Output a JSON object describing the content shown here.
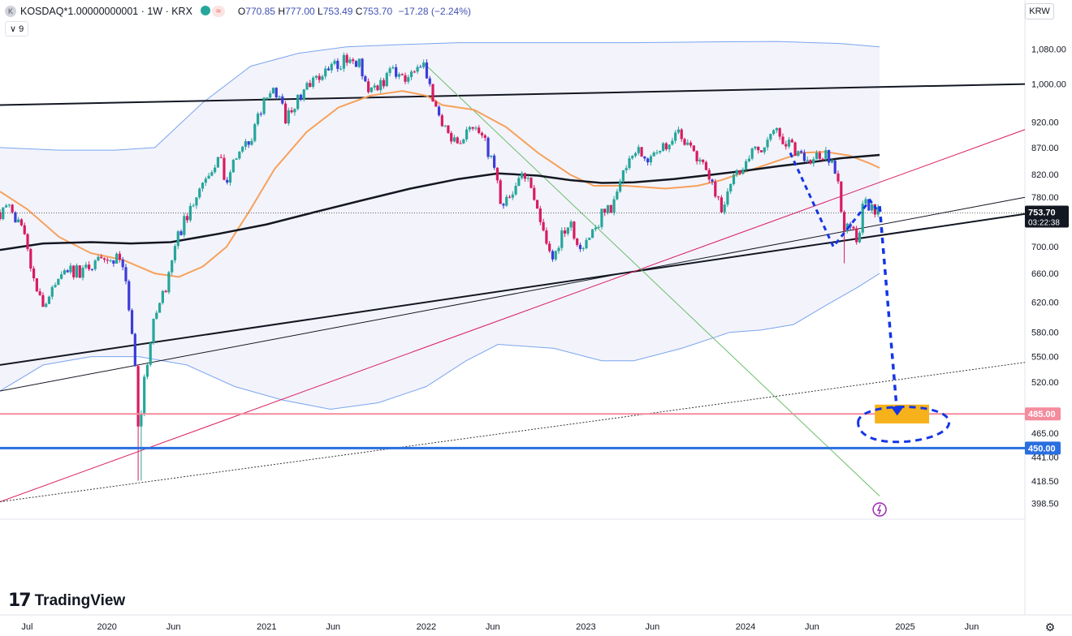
{
  "header": {
    "symbol": "KOSDAQ*1.00000000001 · 1W · KRX",
    "symbol_icon": "K",
    "open_label": "O",
    "open": "770.85",
    "high_label": "H",
    "high": "777.00",
    "low_label": "L",
    "low": "753.49",
    "close_label": "C",
    "close": "753.70",
    "change": "−17.28 (−2.24%)",
    "indicator_count": "9",
    "indicator_chevron": "∨",
    "wave_glyph": "≈"
  },
  "currency": "KRW",
  "branding": {
    "name": "TradingView",
    "mark": "17"
  },
  "settings_glyph": "⚙",
  "colors": {
    "up": "#26a69a",
    "down": "#3b3cd8",
    "down_red": "#d81b60",
    "bb_line": "#7aa5ef",
    "bb_fill": "#f3f3fb",
    "ma_orange": "#f6a15a",
    "ma_black": "#131722",
    "support_red": "#f48c9e",
    "support_blue": "#2a6fe0",
    "target_orange": "#f7b21b",
    "projection_blue": "#1336e6",
    "trend_green": "#6abf69",
    "trend_crimson": "#d81b60"
  },
  "chart_data": {
    "type": "candlestick",
    "title": "KOSDAQ*1.00000000001 · 1W · KRX",
    "y_scale": "log",
    "ylim": [
      385,
      1140
    ],
    "y_ticks": [
      1080,
      1000,
      920,
      870,
      820,
      780,
      700,
      660,
      620,
      580,
      550,
      520,
      465,
      441,
      418.5,
      398.5
    ],
    "y_tick_labels": [
      "1,080.00",
      "1,000.00",
      "920.00",
      "870.00",
      "820.00",
      "780.00",
      "700.00",
      "660.00",
      "620.00",
      "580.00",
      "550.00",
      "520.00",
      "465.00",
      "441.00",
      "418.50",
      "398.50"
    ],
    "x_range": [
      2019.33,
      2025.75
    ],
    "x_ticks": [
      {
        "label": "Jul",
        "t": 2019.5
      },
      {
        "label": "2020",
        "t": 2020.0
      },
      {
        "label": "Jun",
        "t": 2020.4167
      },
      {
        "label": "2021",
        "t": 2021.0
      },
      {
        "label": "Jun",
        "t": 2021.4167
      },
      {
        "label": "2022",
        "t": 2022.0
      },
      {
        "label": "Jun",
        "t": 2022.4167
      },
      {
        "label": "2023",
        "t": 2023.0
      },
      {
        "label": "Jun",
        "t": 2023.4167
      },
      {
        "label": "2024",
        "t": 2024.0
      },
      {
        "label": "Jun",
        "t": 2024.4167
      },
      {
        "label": "2025",
        "t": 2025.0
      },
      {
        "label": "Jun",
        "t": 2025.4167
      }
    ],
    "price_anchors": [
      [
        2019.33,
        755
      ],
      [
        2019.4,
        765
      ],
      [
        2019.48,
        715
      ],
      [
        2019.55,
        640
      ],
      [
        2019.6,
        610
      ],
      [
        2019.66,
        640
      ],
      [
        2019.75,
        665
      ],
      [
        2019.85,
        660
      ],
      [
        2019.92,
        680
      ],
      [
        2020.0,
        670
      ],
      [
        2020.08,
        690
      ],
      [
        2020.12,
        640
      ],
      [
        2020.17,
        560
      ],
      [
        2020.2,
        460
      ],
      [
        2020.23,
        520
      ],
      [
        2020.3,
        600
      ],
      [
        2020.38,
        650
      ],
      [
        2020.45,
        720
      ],
      [
        2020.55,
        780
      ],
      [
        2020.62,
        820
      ],
      [
        2020.7,
        850
      ],
      [
        2020.75,
        810
      ],
      [
        2020.82,
        860
      ],
      [
        2020.9,
        880
      ],
      [
        2020.98,
        960
      ],
      [
        2021.05,
        990
      ],
      [
        2021.12,
        930
      ],
      [
        2021.2,
        970
      ],
      [
        2021.28,
        1010
      ],
      [
        2021.35,
        1020
      ],
      [
        2021.42,
        1040
      ],
      [
        2021.5,
        1055
      ],
      [
        2021.58,
        1050
      ],
      [
        2021.62,
        990
      ],
      [
        2021.7,
        1000
      ],
      [
        2021.78,
        1025
      ],
      [
        2021.85,
        1010
      ],
      [
        2021.92,
        1020
      ],
      [
        2021.99,
        1040
      ],
      [
        2022.05,
        960
      ],
      [
        2022.12,
        900
      ],
      [
        2022.2,
        880
      ],
      [
        2022.28,
        920
      ],
      [
        2022.35,
        890
      ],
      [
        2022.42,
        840
      ],
      [
        2022.48,
        760
      ],
      [
        2022.55,
        790
      ],
      [
        2022.6,
        820
      ],
      [
        2022.66,
        800
      ],
      [
        2022.72,
        730
      ],
      [
        2022.78,
        680
      ],
      [
        2022.85,
        720
      ],
      [
        2022.9,
        740
      ],
      [
        2022.97,
        690
      ],
      [
        2023.05,
        720
      ],
      [
        2023.1,
        750
      ],
      [
        2023.18,
        770
      ],
      [
        2023.25,
        840
      ],
      [
        2023.32,
        870
      ],
      [
        2023.4,
        840
      ],
      [
        2023.48,
        870
      ],
      [
        2023.55,
        900
      ],
      [
        2023.6,
        890
      ],
      [
        2023.65,
        880
      ],
      [
        2023.72,
        840
      ],
      [
        2023.8,
        800
      ],
      [
        2023.85,
        760
      ],
      [
        2023.9,
        800
      ],
      [
        2023.98,
        830
      ],
      [
        2024.05,
        860
      ],
      [
        2024.12,
        880
      ],
      [
        2024.2,
        900
      ],
      [
        2024.28,
        870
      ],
      [
        2024.35,
        860
      ],
      [
        2024.42,
        850
      ],
      [
        2024.5,
        855
      ],
      [
        2024.55,
        840
      ],
      [
        2024.58,
        800
      ],
      [
        2024.62,
        720
      ],
      [
        2024.66,
        740
      ],
      [
        2024.7,
        700
      ],
      [
        2024.74,
        770
      ],
      [
        2024.79,
        765
      ],
      [
        2024.84,
        754
      ]
    ],
    "bb_upper": [
      [
        2019.33,
        870
      ],
      [
        2019.7,
        865
      ],
      [
        2020.05,
        865
      ],
      [
        2020.3,
        870
      ],
      [
        2020.6,
        960
      ],
      [
        2020.9,
        1040
      ],
      [
        2021.2,
        1070
      ],
      [
        2021.5,
        1085
      ],
      [
        2021.8,
        1090
      ],
      [
        2022.2,
        1095
      ],
      [
        2022.8,
        1095
      ],
      [
        2023.3,
        1095
      ],
      [
        2023.8,
        1097
      ],
      [
        2024.2,
        1098
      ],
      [
        2024.6,
        1093
      ],
      [
        2024.84,
        1085
      ]
    ],
    "bb_lower": [
      [
        2019.33,
        510
      ],
      [
        2019.6,
        540
      ],
      [
        2019.9,
        550
      ],
      [
        2020.2,
        550
      ],
      [
        2020.5,
        540
      ],
      [
        2020.8,
        515
      ],
      [
        2021.1,
        500
      ],
      [
        2021.4,
        490
      ],
      [
        2021.7,
        497
      ],
      [
        2022.0,
        515
      ],
      [
        2022.25,
        545
      ],
      [
        2022.45,
        565
      ],
      [
        2022.8,
        560
      ],
      [
        2023.1,
        545
      ],
      [
        2023.3,
        545
      ],
      [
        2023.6,
        560
      ],
      [
        2023.9,
        580
      ],
      [
        2024.1,
        583
      ],
      [
        2024.3,
        590
      ],
      [
        2024.5,
        615
      ],
      [
        2024.7,
        640
      ],
      [
        2024.84,
        660
      ]
    ],
    "ma_orange": [
      [
        2019.33,
        790
      ],
      [
        2019.5,
        760
      ],
      [
        2019.7,
        715
      ],
      [
        2019.9,
        690
      ],
      [
        2020.1,
        680
      ],
      [
        2020.3,
        660
      ],
      [
        2020.45,
        655
      ],
      [
        2020.6,
        670
      ],
      [
        2020.75,
        700
      ],
      [
        2020.9,
        760
      ],
      [
        2021.05,
        830
      ],
      [
        2021.25,
        900
      ],
      [
        2021.45,
        950
      ],
      [
        2021.65,
        975
      ],
      [
        2021.85,
        985
      ],
      [
        2022.0,
        975
      ],
      [
        2022.1,
        955
      ],
      [
        2022.3,
        945
      ],
      [
        2022.5,
        910
      ],
      [
        2022.7,
        860
      ],
      [
        2022.9,
        820
      ],
      [
        2023.05,
        800
      ],
      [
        2023.25,
        800
      ],
      [
        2023.5,
        795
      ],
      [
        2023.7,
        800
      ],
      [
        2023.85,
        810
      ],
      [
        2024.0,
        825
      ],
      [
        2024.2,
        845
      ],
      [
        2024.35,
        860
      ],
      [
        2024.5,
        862
      ],
      [
        2024.65,
        855
      ],
      [
        2024.78,
        840
      ],
      [
        2024.84,
        832
      ]
    ],
    "ma_black": [
      [
        2019.33,
        695
      ],
      [
        2019.6,
        705
      ],
      [
        2019.9,
        707
      ],
      [
        2020.15,
        705
      ],
      [
        2020.4,
        707
      ],
      [
        2020.7,
        720
      ],
      [
        2021.0,
        735
      ],
      [
        2021.3,
        755
      ],
      [
        2021.6,
        775
      ],
      [
        2021.9,
        795
      ],
      [
        2022.2,
        812
      ],
      [
        2022.45,
        822
      ],
      [
        2022.7,
        818
      ],
      [
        2022.9,
        810
      ],
      [
        2023.1,
        805
      ],
      [
        2023.3,
        806
      ],
      [
        2023.55,
        812
      ],
      [
        2023.8,
        820
      ],
      [
        2024.0,
        827
      ],
      [
        2024.2,
        835
      ],
      [
        2024.4,
        842
      ],
      [
        2024.6,
        850
      ],
      [
        2024.84,
        856
      ]
    ],
    "horizontal_levels": [
      {
        "value": 485,
        "label": "485.00",
        "color": "#f48c9e"
      },
      {
        "value": 450,
        "label": "450.00",
        "color": "#2a6fe0"
      }
    ],
    "current_price": {
      "value": 753.7,
      "label": "753.70",
      "countdown": "03:22:38"
    },
    "projection": {
      "from": [
        2024.84,
        765
      ],
      "to": [
        2024.95,
        485
      ],
      "target_zone": [
        475,
        495
      ]
    }
  }
}
